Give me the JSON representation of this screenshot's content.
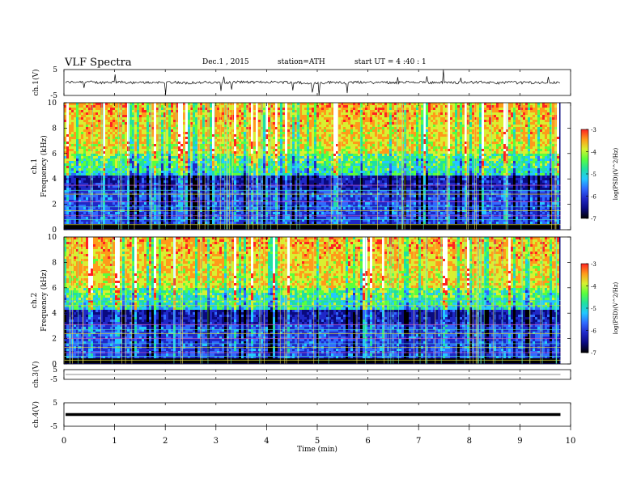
{
  "header": {
    "title": "VLF Spectra",
    "date": "Dec.1 , 2015",
    "station": "station=ATH",
    "start": "start UT = 4 :40 : 1"
  },
  "chart_data": [
    {
      "type": "line",
      "panel": "ch1-waveform",
      "ylabel": "ch.1(V)",
      "yticks": [
        "5",
        "-5"
      ],
      "ylim": [
        -5,
        5
      ],
      "trace_color": "#000000"
    },
    {
      "type": "heatmap",
      "panel": "ch1-spectrogram",
      "ylabel": "ch.1 Frequency (kHz)",
      "yticks": [
        "0",
        "2",
        "4",
        "6",
        "8",
        "10"
      ],
      "ylim": [
        0,
        10
      ],
      "colorbar": {
        "label": "log(PSD)(V^2/Hz)",
        "ticks": [
          "-3",
          "-4",
          "-5",
          "-6",
          "-7"
        ],
        "range": [
          -7,
          -3
        ]
      }
    },
    {
      "type": "heatmap",
      "panel": "ch2-spectrogram",
      "ylabel": "ch.2 Frequency (kHz)",
      "yticks": [
        "0",
        "2",
        "4",
        "6",
        "8",
        "10"
      ],
      "ylim": [
        0,
        10
      ],
      "colorbar": {
        "label": "log(PSD)(V^2/Hz)",
        "ticks": [
          "-3",
          "-4",
          "-5",
          "-6",
          "-7"
        ],
        "range": [
          -7,
          -3
        ]
      }
    },
    {
      "type": "line",
      "panel": "ch3-waveform",
      "ylabel": "ch.3(V)",
      "yticks": [
        "5",
        "-5"
      ],
      "ylim": [
        -5,
        5
      ],
      "trace_color": "#8c8c8c",
      "level": 0
    },
    {
      "type": "line",
      "panel": "ch4-waveform",
      "ylabel": "ch.4(V)",
      "yticks": [
        "5",
        "-5"
      ],
      "ylim": [
        -5,
        5
      ],
      "trace_color": "#000000",
      "level": 0
    }
  ],
  "x_axis": {
    "label": "Time (min)",
    "ticks": [
      "0",
      "1",
      "2",
      "3",
      "4",
      "5",
      "6",
      "7",
      "8",
      "9",
      "10"
    ],
    "range": [
      0,
      10
    ],
    "data_end": 9.8
  },
  "colormap": [
    "#000000",
    "#0a0a80",
    "#1f28c8",
    "#2f6aff",
    "#22c8ff",
    "#20e0a0",
    "#5aff3c",
    "#d8f030",
    "#ff9a1a",
    "#ff2222",
    "#ffffff"
  ]
}
